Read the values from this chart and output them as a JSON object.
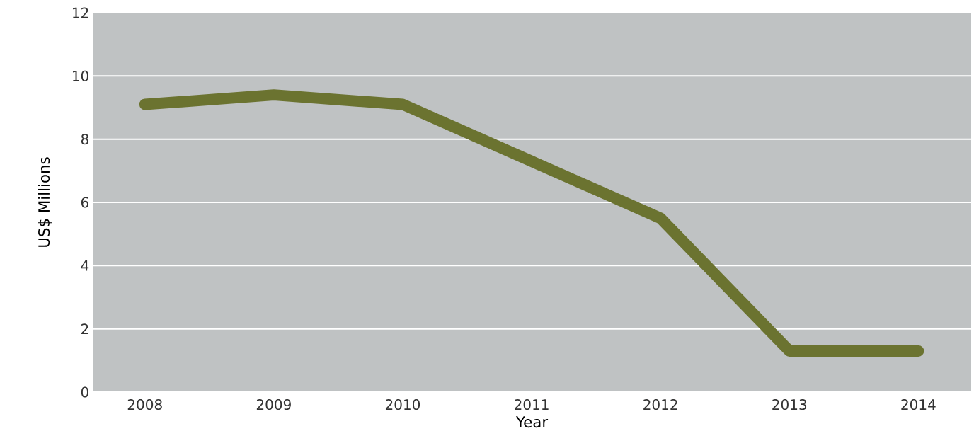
{
  "chart_data": {
    "type": "line",
    "xlabel": "Year",
    "ylabel": "US$ Millions",
    "categories": [
      "2008",
      "2009",
      "2010",
      "2011",
      "2012",
      "2013",
      "2014"
    ],
    "series": [
      {
        "color": "#6b7330",
        "values": [
          9.1,
          9.4,
          9.1,
          7.3,
          5.5,
          1.3,
          1.3
        ]
      }
    ],
    "ylim": [
      0,
      12
    ],
    "yticks": [
      0,
      2,
      4,
      6,
      8,
      10,
      12
    ],
    "grid": "y"
  }
}
